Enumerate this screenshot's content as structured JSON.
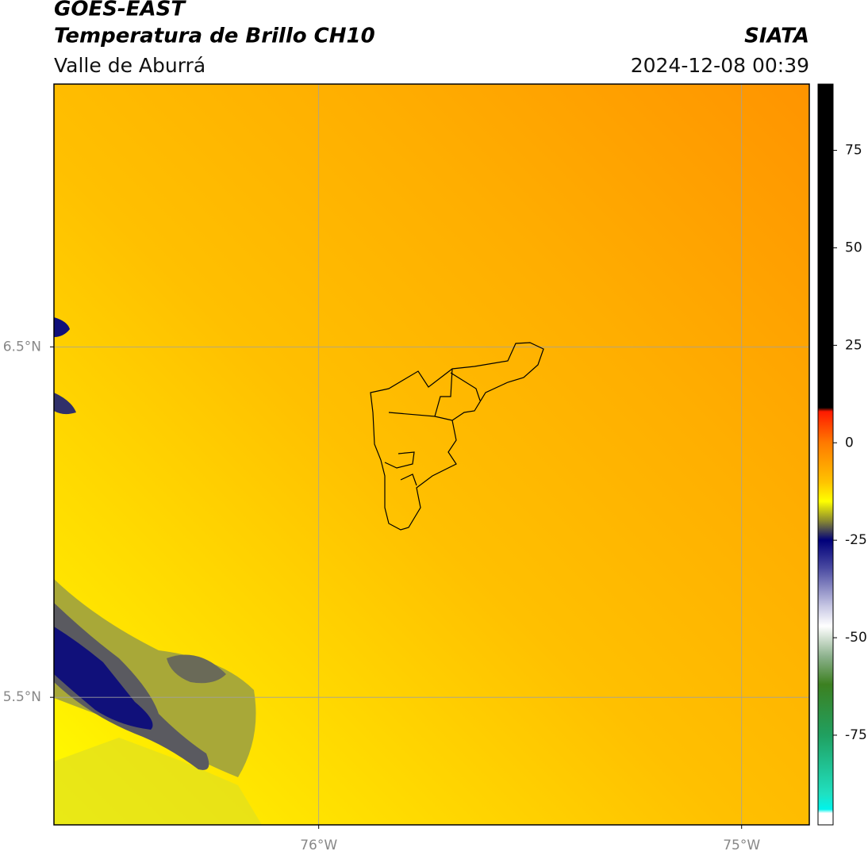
{
  "chart_data": {
    "type": "map",
    "title": "GOES-EAST",
    "subtitle": "Temperatura de Brillo CH10",
    "region": "Valle de Aburrá",
    "source": "SIATA",
    "timestamp": "2024-12-08 00:39",
    "xlim": [
      -76.626,
      -74.84
    ],
    "ylim": [
      5.136,
      7.25
    ],
    "xticks": [
      {
        "value": -76,
        "label": "76°W"
      },
      {
        "value": -75,
        "label": "75°W"
      }
    ],
    "yticks": [
      {
        "value": 5.5,
        "label": "5.5°N"
      },
      {
        "value": 6.5,
        "label": "6.5°N"
      }
    ],
    "grid": true,
    "colorbar": {
      "lim": [
        -98,
        92
      ],
      "ticks": [
        -75,
        -50,
        -25,
        0,
        25,
        50,
        75
      ],
      "colormap": [
        {
          "value": 92,
          "color": "#000000"
        },
        {
          "value": 9,
          "color": "#000000"
        },
        {
          "value": 8,
          "color": "#ff1a00"
        },
        {
          "value": 0,
          "color": "#ff7a00"
        },
        {
          "value": -10,
          "color": "#ffc200"
        },
        {
          "value": -15,
          "color": "#ffff00"
        },
        {
          "value": -20,
          "color": "#8a8a30"
        },
        {
          "value": -25,
          "color": "#00007a"
        },
        {
          "value": -32,
          "color": "#4848a0"
        },
        {
          "value": -42,
          "color": "#c8c8e4"
        },
        {
          "value": -47,
          "color": "#ffffff"
        },
        {
          "value": -55,
          "color": "#8ab08a"
        },
        {
          "value": -62,
          "color": "#3c8020"
        },
        {
          "value": -75,
          "color": "#20a060"
        },
        {
          "value": -90,
          "color": "#20e0c0"
        },
        {
          "value": -94,
          "color": "#00f4ec"
        },
        {
          "value": -95,
          "color": "#ffffff"
        },
        {
          "value": -98,
          "color": "#ffffff"
        }
      ]
    }
  }
}
